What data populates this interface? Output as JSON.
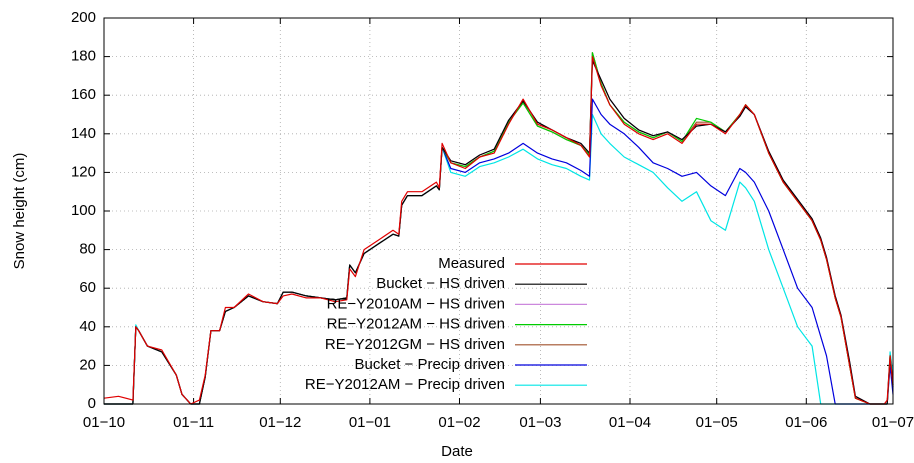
{
  "chart_data": {
    "type": "line",
    "xlabel": "Date",
    "ylabel": "Snow height (cm)",
    "x": [
      0,
      5,
      10,
      11,
      12,
      15,
      20,
      25,
      27,
      30,
      33,
      35,
      37,
      40,
      42,
      45,
      50,
      55,
      60,
      62,
      65,
      70,
      75,
      80,
      84,
      85,
      87,
      90,
      95,
      100,
      102,
      103,
      105,
      110,
      115,
      116,
      117,
      120,
      125,
      130,
      135,
      140,
      145,
      150,
      155,
      160,
      165,
      168,
      169,
      172,
      175,
      180,
      185,
      190,
      195,
      200,
      205,
      210,
      215,
      220,
      222,
      225,
      230,
      235,
      240,
      245,
      248,
      250,
      253,
      255,
      258,
      260,
      265,
      270,
      271,
      272,
      273
    ],
    "xlim": [
      0,
      273
    ],
    "xticks": [
      {
        "value": 0,
        "label": "01−10"
      },
      {
        "value": 31,
        "label": "01−11"
      },
      {
        "value": 61,
        "label": "01−12"
      },
      {
        "value": 92,
        "label": "01−01"
      },
      {
        "value": 123,
        "label": "01−02"
      },
      {
        "value": 151,
        "label": "01−03"
      },
      {
        "value": 182,
        "label": "01−04"
      },
      {
        "value": 212,
        "label": "01−05"
      },
      {
        "value": 243,
        "label": "01−06"
      },
      {
        "value": 273,
        "label": "01−07"
      }
    ],
    "ylim": [
      0,
      200
    ],
    "yticks": [
      0,
      20,
      40,
      60,
      80,
      100,
      120,
      140,
      160,
      180,
      200
    ],
    "grid": true,
    "legend": "bottom-center",
    "series": [
      {
        "name": "Measured",
        "color": "#e00000",
        "values": [
          3,
          4,
          2,
          40,
          38,
          30,
          28,
          15,
          5,
          0,
          2,
          15,
          38,
          38,
          50,
          50,
          57,
          53,
          52,
          56,
          57,
          55,
          55,
          53,
          54,
          70,
          66,
          80,
          85,
          90,
          88,
          105,
          110,
          110,
          115,
          112,
          135,
          125,
          122,
          128,
          130,
          145,
          158,
          145,
          142,
          138,
          134,
          128,
          180,
          165,
          155,
          145,
          140,
          137,
          140,
          135,
          145,
          145,
          140,
          150,
          155,
          150,
          130,
          115,
          105,
          95,
          85,
          75,
          55,
          45,
          20,
          3,
          0,
          0,
          2,
          25,
          10
        ]
      },
      {
        "name": "Bucket − HS driven",
        "color": "#000000",
        "values": [
          0,
          0,
          0,
          40,
          38,
          30,
          27,
          15,
          5,
          0,
          0,
          14,
          38,
          38,
          48,
          50,
          56,
          53,
          52,
          58,
          58,
          56,
          55,
          54,
          55,
          72,
          68,
          78,
          83,
          88,
          87,
          103,
          108,
          108,
          113,
          111,
          133,
          126,
          124,
          129,
          132,
          147,
          157,
          146,
          142,
          138,
          135,
          130,
          178,
          168,
          158,
          148,
          142,
          139,
          141,
          137,
          144,
          145,
          141,
          149,
          154,
          150,
          131,
          116,
          106,
          96,
          86,
          76,
          56,
          46,
          22,
          4,
          0,
          0,
          0,
          24,
          9
        ]
      },
      {
        "name": "RE−Y2010AM − HS driven",
        "color": "#cc88dd",
        "values": [
          0,
          0,
          0,
          40,
          38,
          30,
          27,
          15,
          5,
          0,
          0,
          14,
          38,
          38,
          48,
          50,
          56,
          53,
          52,
          58,
          58,
          56,
          55,
          54,
          55,
          72,
          68,
          78,
          83,
          88,
          87,
          103,
          108,
          108,
          113,
          111,
          133,
          126,
          124,
          129,
          132,
          147,
          157,
          146,
          142,
          138,
          135,
          130,
          178,
          168,
          158,
          148,
          142,
          139,
          141,
          137,
          144,
          145,
          141,
          149,
          154,
          150,
          131,
          116,
          106,
          96,
          86,
          76,
          56,
          46,
          22,
          4,
          0,
          0,
          0,
          24,
          9
        ]
      },
      {
        "name": "RE−Y2012AM − HS driven",
        "color": "#00cc00",
        "values": [
          0,
          0,
          0,
          40,
          38,
          30,
          27,
          15,
          5,
          0,
          0,
          14,
          38,
          38,
          48,
          50,
          56,
          53,
          52,
          58,
          58,
          56,
          55,
          54,
          55,
          72,
          68,
          78,
          83,
          88,
          87,
          103,
          108,
          108,
          113,
          111,
          133,
          125,
          123,
          128,
          131,
          146,
          156,
          144,
          141,
          137,
          134,
          129,
          182,
          166,
          155,
          146,
          141,
          138,
          141,
          136,
          148,
          146,
          141,
          150,
          155,
          150,
          130,
          115,
          105,
          95,
          85,
          75,
          55,
          45,
          20,
          3,
          0,
          0,
          0,
          25,
          10
        ]
      },
      {
        "name": "RE−Y2012GM − HS driven",
        "color": "#a0522d",
        "values": [
          0,
          0,
          0,
          40,
          38,
          30,
          27,
          15,
          5,
          0,
          0,
          14,
          38,
          38,
          48,
          50,
          56,
          53,
          52,
          58,
          58,
          56,
          55,
          54,
          55,
          72,
          68,
          78,
          83,
          88,
          87,
          103,
          108,
          108,
          113,
          111,
          133,
          125,
          123,
          128,
          131,
          146,
          156,
          144,
          141,
          137,
          134,
          129,
          182,
          166,
          155,
          146,
          141,
          138,
          141,
          136,
          146,
          146,
          141,
          150,
          155,
          150,
          130,
          115,
          105,
          95,
          85,
          75,
          55,
          45,
          20,
          3,
          0,
          0,
          0,
          25,
          10
        ]
      },
      {
        "name": "Bucket − Precip driven",
        "color": "#0000dd",
        "values": [
          0,
          0,
          0,
          40,
          38,
          30,
          27,
          15,
          5,
          0,
          0,
          14,
          38,
          38,
          48,
          50,
          56,
          53,
          52,
          58,
          58,
          56,
          55,
          54,
          55,
          72,
          68,
          78,
          83,
          88,
          87,
          103,
          108,
          108,
          113,
          111,
          133,
          122,
          120,
          125,
          127,
          130,
          135,
          130,
          127,
          125,
          121,
          118,
          158,
          150,
          145,
          140,
          133,
          125,
          122,
          118,
          120,
          113,
          108,
          122,
          120,
          115,
          100,
          80,
          60,
          50,
          35,
          25,
          0,
          0,
          0,
          0,
          0,
          0,
          0,
          20,
          5
        ]
      },
      {
        "name": "RE−Y2012AM − Precip driven",
        "color": "#00e5e5",
        "values": [
          0,
          0,
          0,
          41,
          38,
          30,
          27,
          15,
          5,
          0,
          0,
          14,
          38,
          38,
          48,
          50,
          56,
          53,
          52,
          58,
          58,
          56,
          55,
          54,
          55,
          72,
          68,
          78,
          83,
          88,
          87,
          103,
          108,
          108,
          113,
          111,
          133,
          120,
          118,
          123,
          125,
          128,
          132,
          127,
          124,
          122,
          118,
          116,
          150,
          140,
          135,
          128,
          124,
          120,
          112,
          105,
          110,
          95,
          90,
          115,
          112,
          105,
          80,
          60,
          40,
          30,
          0,
          0,
          0,
          0,
          0,
          0,
          0,
          0,
          0,
          27,
          15
        ]
      }
    ]
  }
}
